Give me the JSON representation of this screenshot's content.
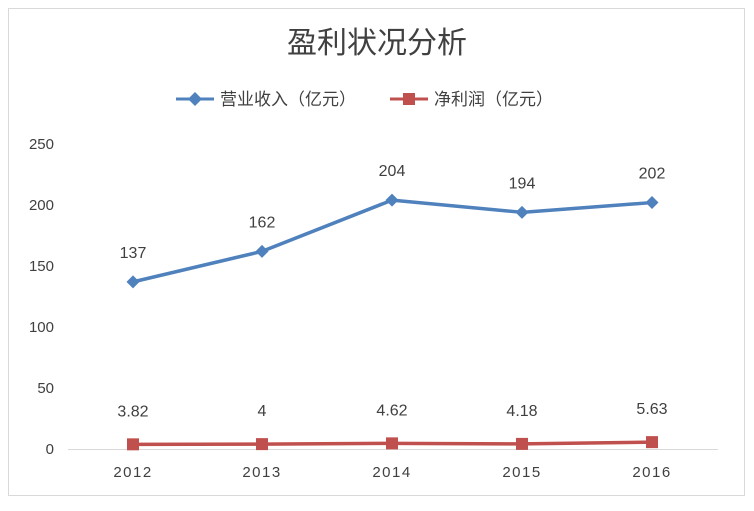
{
  "chart_data": {
    "type": "line",
    "title": "盈利状况分析",
    "categories": [
      "2012",
      "2013",
      "2014",
      "2015",
      "2016"
    ],
    "series": [
      {
        "name": "营业收入（亿元）",
        "values": [
          137,
          162,
          204,
          194,
          202
        ],
        "labels": [
          "137",
          "162",
          "204",
          "194",
          "202"
        ],
        "color": "#4f81bd",
        "marker": "diamond"
      },
      {
        "name": "净利润（亿元）",
        "values": [
          3.82,
          4,
          4.62,
          4.18,
          5.63
        ],
        "labels": [
          "3.82",
          "4",
          "4.62",
          "4.18",
          "5.63"
        ],
        "color": "#c0504d",
        "marker": "square"
      }
    ],
    "y_ticks": [
      "0",
      "50",
      "100",
      "150",
      "200",
      "250"
    ],
    "ylim": [
      0,
      250
    ],
    "grid": false,
    "legend_position": "top"
  }
}
